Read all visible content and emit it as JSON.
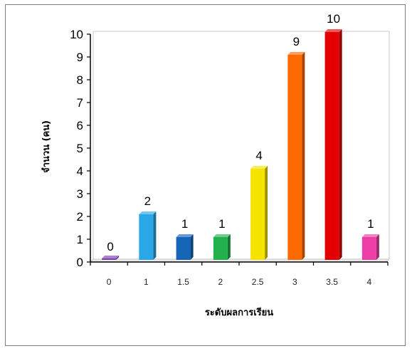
{
  "chart_data": {
    "type": "bar",
    "title": "",
    "xlabel": "ระดับผลการเรียน",
    "ylabel": "จำนวน (คน)",
    "categories": [
      "0",
      "1",
      "1.5",
      "2",
      "2.5",
      "3",
      "3.5",
      "4"
    ],
    "values": [
      0,
      2,
      1,
      1,
      4,
      9,
      10,
      1
    ],
    "ylim": [
      0,
      10
    ],
    "yticks": [
      "0",
      "1",
      "2",
      "3",
      "4",
      "5",
      "6",
      "7",
      "8",
      "9",
      "10"
    ],
    "grid": false,
    "legend": "none",
    "data_labels": true,
    "style": "3d-column",
    "colors": [
      "#7b3fb0",
      "#2aa7e6",
      "#1565b8",
      "#22b14c",
      "#f5e400",
      "#ff6a00",
      "#e50000",
      "#ec3ea6"
    ]
  }
}
